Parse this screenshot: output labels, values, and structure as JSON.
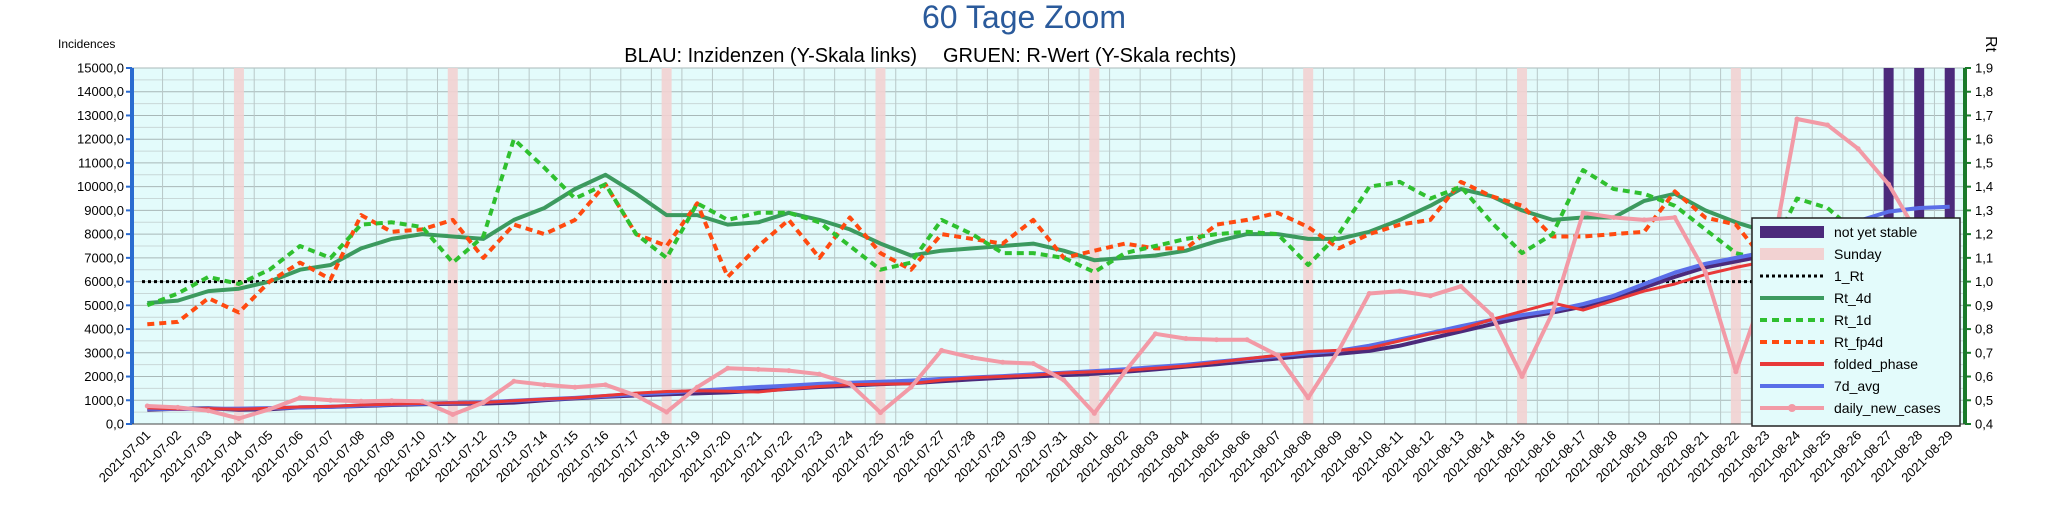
{
  "chart_data": {
    "type": "line",
    "title": "60 Tage Zoom",
    "subtitle_left": "BLAU: Inzidenzen (Y-Skala links)",
    "subtitle_right": "GRUEN: R-Wert (Y-Skala rechts)",
    "ylabel_left": "Incidences",
    "ylabel_right": "Rt",
    "ylim_left": [
      0,
      15000
    ],
    "ylim_right": [
      0.4,
      1.9
    ],
    "yticks_left": [
      "0,0",
      "1000,0",
      "2000,0",
      "3000,0",
      "4000,0",
      "5000,0",
      "6000,0",
      "7000,0",
      "8000,0",
      "9000,0",
      "10000,0",
      "11000,0",
      "12000,0",
      "13000,0",
      "14000,0",
      "15000,0"
    ],
    "yticks_right": [
      "0,4",
      "0,5",
      "0,6",
      "0,7",
      "0,8",
      "0,9",
      "1,0",
      "1,1",
      "1,2",
      "1,3",
      "1,4",
      "1,5",
      "1,6",
      "1,7",
      "1,8",
      "1,9"
    ],
    "x": [
      "2021-07-01",
      "2021-07-02",
      "2021-07-03",
      "2021-07-04",
      "2021-07-05",
      "2021-07-06",
      "2021-07-07",
      "2021-07-08",
      "2021-07-09",
      "2021-07-10",
      "2021-07-11",
      "2021-07-12",
      "2021-07-13",
      "2021-07-14",
      "2021-07-15",
      "2021-07-16",
      "2021-07-17",
      "2021-07-18",
      "2021-07-19",
      "2021-07-20",
      "2021-07-21",
      "2021-07-22",
      "2021-07-23",
      "2021-07-24",
      "2021-07-25",
      "2021-07-26",
      "2021-07-27",
      "2021-07-28",
      "2021-07-29",
      "2021-07-30",
      "2021-07-31",
      "2021-08-01",
      "2021-08-02",
      "2021-08-03",
      "2021-08-04",
      "2021-08-05",
      "2021-08-06",
      "2021-08-07",
      "2021-08-08",
      "2021-08-09",
      "2021-08-10",
      "2021-08-11",
      "2021-08-12",
      "2021-08-13",
      "2021-08-14",
      "2021-08-15",
      "2021-08-16",
      "2021-08-17",
      "2021-08-18",
      "2021-08-19",
      "2021-08-20",
      "2021-08-21",
      "2021-08-22",
      "2021-08-23",
      "2021-08-24",
      "2021-08-25",
      "2021-08-26",
      "2021-08-27",
      "2021-08-28",
      "2021-08-29"
    ],
    "x_label_step": 1,
    "sunday_dates": [
      "2021-07-04",
      "2021-07-11",
      "2021-07-18",
      "2021-07-25",
      "2021-08-01",
      "2021-08-08",
      "2021-08-15",
      "2021-08-22",
      "2021-08-29"
    ],
    "not_yet_stable_dates": [
      "2021-08-27",
      "2021-08-28",
      "2021-08-29"
    ],
    "reference_line": {
      "name": "1_Rt",
      "value": 1.0,
      "color": "#000000"
    },
    "grid": true,
    "legend_position": "right",
    "legend": [
      {
        "name": "not yet stable",
        "color": "#4b2a7b",
        "style": "bar"
      },
      {
        "name": "Sunday",
        "color": "#f2d2d2",
        "style": "bar"
      },
      {
        "name": "1_Rt",
        "color": "#000000",
        "style": "dotted"
      },
      {
        "name": "Rt_4d",
        "color": "#3c9a5f",
        "style": "solid"
      },
      {
        "name": "Rt_1d",
        "color": "#2fc02f",
        "style": "dashed"
      },
      {
        "name": "Rt_fp4d",
        "color": "#ff4a10",
        "style": "dashed"
      },
      {
        "name": "folded_phase",
        "color": "#e83838",
        "style": "solid"
      },
      {
        "name": "7d_avg",
        "color": "#5a6ee8",
        "style": "solid"
      },
      {
        "name": "daily_new_cases",
        "color": "#f29aa6",
        "style": "marker"
      }
    ],
    "series": [
      {
        "name": "Rt_4d",
        "axis": "right",
        "color": "#3c9a5f",
        "values": [
          0.91,
          0.92,
          0.96,
          0.97,
          1.0,
          1.05,
          1.07,
          1.14,
          1.18,
          1.2,
          1.19,
          1.18,
          1.26,
          1.31,
          1.39,
          1.45,
          1.37,
          1.28,
          1.28,
          1.24,
          1.25,
          1.29,
          1.26,
          1.22,
          1.16,
          1.11,
          1.13,
          1.14,
          1.15,
          1.16,
          1.13,
          1.09,
          1.1,
          1.11,
          1.13,
          1.17,
          1.2,
          1.2,
          1.18,
          1.18,
          1.21,
          1.26,
          1.32,
          1.39,
          1.36,
          1.3,
          1.26,
          1.27,
          1.27,
          1.34,
          1.37,
          1.3,
          1.25,
          1.21,
          1.19,
          1.21,
          1.25,
          1.23,
          1.17,
          1.08
        ]
      },
      {
        "name": "Rt_1d",
        "axis": "right",
        "color": "#2fc02f",
        "values": [
          0.9,
          0.95,
          1.02,
          0.99,
          1.05,
          1.15,
          1.1,
          1.24,
          1.25,
          1.23,
          1.08,
          1.19,
          1.6,
          1.48,
          1.35,
          1.41,
          1.2,
          1.1,
          1.33,
          1.26,
          1.29,
          1.29,
          1.25,
          1.15,
          1.05,
          1.08,
          1.26,
          1.2,
          1.12,
          1.12,
          1.1,
          1.04,
          1.12,
          1.15,
          1.18,
          1.2,
          1.21,
          1.2,
          1.07,
          1.2,
          1.4,
          1.42,
          1.35,
          1.4,
          1.25,
          1.12,
          1.2,
          1.47,
          1.39,
          1.37,
          1.32,
          1.22,
          1.12,
          1.09,
          1.35,
          1.31,
          1.2,
          1.1,
          1.1,
          0.96
        ]
      },
      {
        "name": "Rt_fp4d",
        "axis": "right",
        "color": "#ff4a10",
        "values": [
          0.82,
          0.83,
          0.93,
          0.87,
          1.0,
          1.08,
          1.01,
          1.28,
          1.21,
          1.22,
          1.26,
          1.1,
          1.24,
          1.2,
          1.26,
          1.41,
          1.2,
          1.15,
          1.33,
          1.02,
          1.15,
          1.26,
          1.1,
          1.27,
          1.12,
          1.05,
          1.2,
          1.18,
          1.16,
          1.26,
          1.1,
          1.13,
          1.16,
          1.14,
          1.14,
          1.24,
          1.26,
          1.29,
          1.23,
          1.14,
          1.2,
          1.24,
          1.26,
          1.42,
          1.36,
          1.32,
          1.19,
          1.19,
          1.2,
          1.21,
          1.38,
          1.27,
          1.24,
          1.08,
          1.16,
          1.26,
          1.23,
          1.11,
          1.05,
          0.82
        ]
      },
      {
        "name": "folded_phase",
        "axis": "left",
        "color": "#e83838",
        "values": [
          680,
          630,
          650,
          620,
          660,
          720,
          740,
          800,
          830,
          870,
          890,
          900,
          980,
          1050,
          1100,
          1200,
          1300,
          1370,
          1400,
          1380,
          1350,
          1480,
          1580,
          1650,
          1680,
          1700,
          1850,
          1950,
          2000,
          2050,
          2150,
          2200,
          2250,
          2350,
          2450,
          2600,
          2750,
          2900,
          3050,
          3100,
          3200,
          3500,
          3800,
          4000,
          4400,
          4750,
          5100,
          4800,
          5200,
          5600,
          5900,
          6300,
          6600,
          6850,
          7000,
          7600,
          8200,
          8400,
          8000,
          6800
        ]
      },
      {
        "name": "7d_avg",
        "axis": "left",
        "color": "#5a6ee8",
        "values": [
          640,
          630,
          640,
          650,
          670,
          700,
          730,
          780,
          820,
          860,
          890,
          920,
          980,
          1040,
          1100,
          1180,
          1250,
          1320,
          1400,
          1480,
          1560,
          1620,
          1690,
          1740,
          1780,
          1830,
          1900,
          1960,
          2020,
          2090,
          2160,
          2230,
          2310,
          2400,
          2500,
          2620,
          2740,
          2860,
          2980,
          3090,
          3300,
          3560,
          3830,
          4120,
          4380,
          4590,
          4780,
          5050,
          5400,
          5900,
          6380,
          6750,
          7000,
          7250,
          7500,
          8000,
          8550,
          8950,
          9100,
          9150
        ]
      },
      {
        "name": "not_yet_stable_segment",
        "axis": "left",
        "color": "#4b2a7b",
        "values": [
          600,
          640,
          660,
          600,
          620,
          700,
          720,
          760,
          800,
          830,
          850,
          860,
          900,
          1000,
          1080,
          1150,
          1200,
          1250,
          1290,
          1330,
          1400,
          1480,
          1560,
          1620,
          1680,
          1720,
          1800,
          1880,
          1950,
          2000,
          2060,
          2120,
          2200,
          2300,
          2420,
          2520,
          2640,
          2760,
          2880,
          2960,
          3080,
          3300,
          3600,
          3900,
          4200,
          4480,
          4700,
          4950,
          5300,
          5750,
          6200,
          6600,
          6850,
          7100,
          7350,
          7850,
          8300,
          8400,
          8200,
          7000
        ]
      },
      {
        "name": "daily_new_cases",
        "axis": "left",
        "color": "#f29aa6",
        "values": [
          760,
          700,
          560,
          230,
          620,
          1100,
          1000,
          960,
          980,
          960,
          400,
          900,
          1800,
          1650,
          1550,
          1650,
          1200,
          500,
          1550,
          2350,
          2300,
          2250,
          2100,
          1700,
          480,
          1550,
          3100,
          2800,
          2600,
          2550,
          1850,
          450,
          2200,
          3800,
          3600,
          3550,
          3550,
          2900,
          1100,
          3100,
          5500,
          5600,
          5400,
          5800,
          4600,
          2000,
          4700,
          8900,
          8700,
          8600,
          8700,
          6400,
          2200,
          5900,
          12850,
          12600,
          11600,
          10100,
          7900,
          2600
        ]
      }
    ]
  }
}
